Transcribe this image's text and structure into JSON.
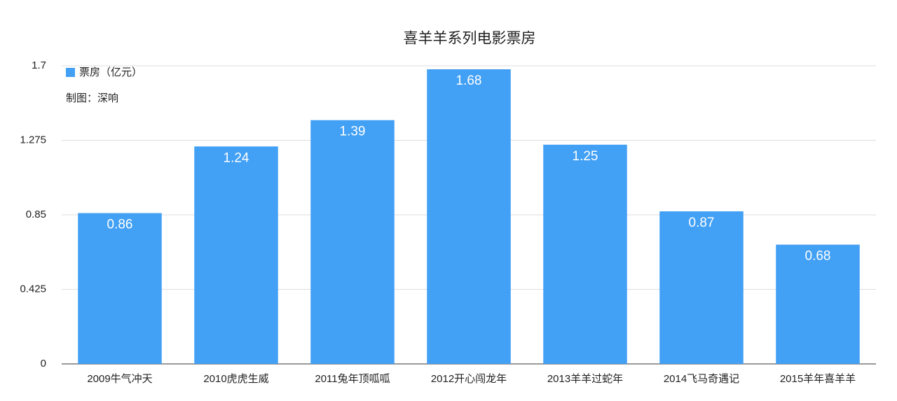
{
  "chart_data": {
    "type": "bar",
    "title": "喜羊羊系列电影票房",
    "annotation": "制图：深响",
    "categories": [
      "2009牛气冲天",
      "2010虎虎生威",
      "2011兔年顶呱呱",
      "2012开心闯龙年",
      "2013羊羊过蛇年",
      "2014飞马奇遇记",
      "2015羊年喜羊羊"
    ],
    "series": [
      {
        "name": "票房（亿元）",
        "color": "#42a0f5",
        "values": [
          0.86,
          1.24,
          1.39,
          1.68,
          1.25,
          0.87,
          0.68
        ]
      }
    ],
    "ylim": [
      0,
      1.7
    ],
    "yticks": [
      0,
      0.425,
      0.85,
      1.275,
      1.7
    ],
    "grid": true,
    "legend": "top-left"
  }
}
